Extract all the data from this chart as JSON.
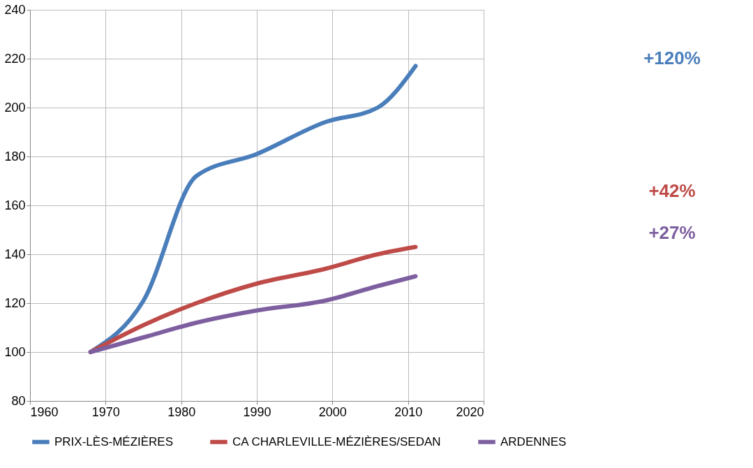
{
  "chart_data": {
    "type": "line",
    "x": [
      1968,
      1975,
      1982,
      1990,
      1999,
      2006,
      2011
    ],
    "series": [
      {
        "name": "PRIX-LÈS-MÉZIÈRES",
        "color": "#4a7ebb",
        "values": [
          100,
          121,
          172,
          181,
          194,
          200,
          217
        ]
      },
      {
        "name": "CA CHARLEVILLE-MÉZIÈRES/SEDAN",
        "color": "#be4b48",
        "values": [
          100,
          111,
          120,
          128,
          134,
          140,
          143
        ]
      },
      {
        "name": "ARDENNES",
        "color": "#7d5fa0",
        "values": [
          100,
          106,
          112,
          117,
          121,
          127,
          131
        ]
      }
    ],
    "xlim": [
      1960,
      2020
    ],
    "xticks": [
      1960,
      1970,
      1980,
      1990,
      2000,
      2010,
      2020
    ],
    "ylim": [
      80,
      240
    ],
    "yticks": [
      80,
      100,
      120,
      140,
      160,
      180,
      200,
      220,
      240
    ],
    "grid": true,
    "legend": "bottom",
    "marker": "none",
    "line_style": "solid",
    "annotations": [
      "+120%",
      "+42%",
      "+27%"
    ]
  }
}
